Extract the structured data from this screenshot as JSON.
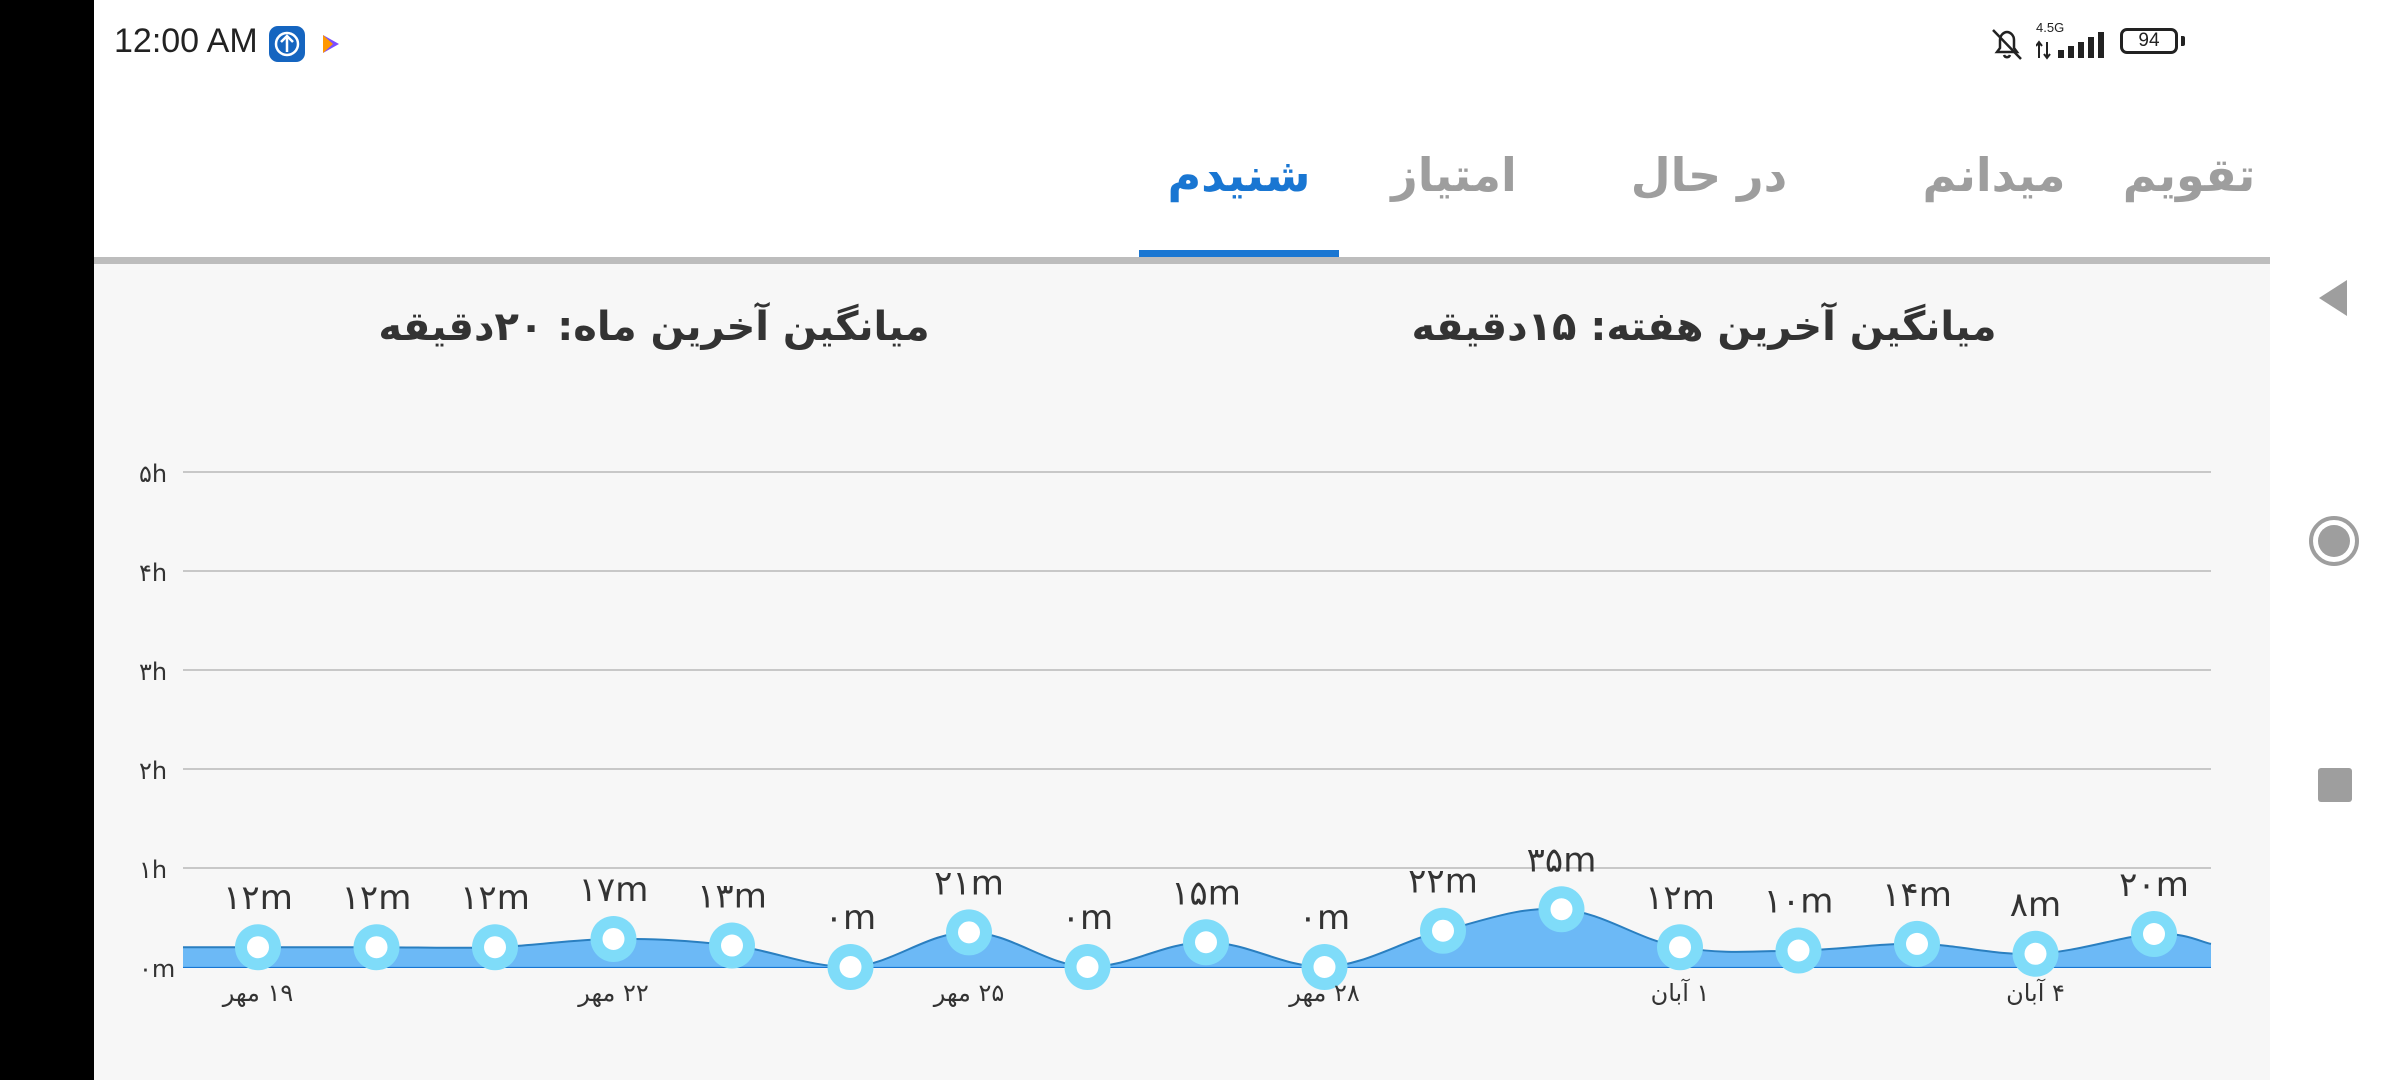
{
  "status_bar": {
    "time": "12:00 AM",
    "network": "4.5G",
    "battery": "94",
    "icons": [
      "app-notification-icon",
      "play-store-icon",
      "mute-bell-icon",
      "signal-icon",
      "battery-icon"
    ]
  },
  "tabs": [
    {
      "label": "تقویم",
      "active": false
    },
    {
      "label": "میدانم",
      "active": false
    },
    {
      "label": "در حال یادگیری",
      "active": false
    },
    {
      "label": "امتیاز",
      "active": false
    },
    {
      "label": "شنیدم",
      "active": true
    }
  ],
  "averages": {
    "week": "میانگین آخرین هفته: ۱۵دقیقه",
    "month": "میانگین آخرین ماه: ۲۰دقیقه"
  },
  "colors": {
    "accent": "#1976d2",
    "area_fill": "#64b5f6",
    "point_ring": "#7fdcf9",
    "tab_inactive": "#9e9e9e"
  },
  "chart_data": {
    "type": "area",
    "y_ticks": [
      "۰m",
      "۱h",
      "۲h",
      "۳h",
      "۴h",
      "۵h"
    ],
    "ylim": [
      0,
      300
    ],
    "grid": true,
    "x_tick_labels": [
      "۱۹ مهر",
      "۲۲ مهر",
      "۲۵ مهر",
      "۲۸ مهر",
      "۱ آبان",
      "۴ آبان"
    ],
    "x_tick_indices": [
      0,
      3,
      6,
      9,
      12,
      15
    ],
    "values": [
      12,
      12,
      12,
      17,
      13,
      0,
      21,
      0,
      15,
      0,
      22,
      35,
      12,
      10,
      14,
      8,
      20
    ],
    "value_labels": [
      "۱۲m",
      "۱۲m",
      "۱۲m",
      "۱۷m",
      "۱۳m",
      "۰m",
      "۲۱m",
      "۰m",
      "۱۵m",
      "۰m",
      "۲۲m",
      "۳۵m",
      "۱۲m",
      "۱۰m",
      "۱۴m",
      "۸m",
      "۲۰m"
    ]
  }
}
